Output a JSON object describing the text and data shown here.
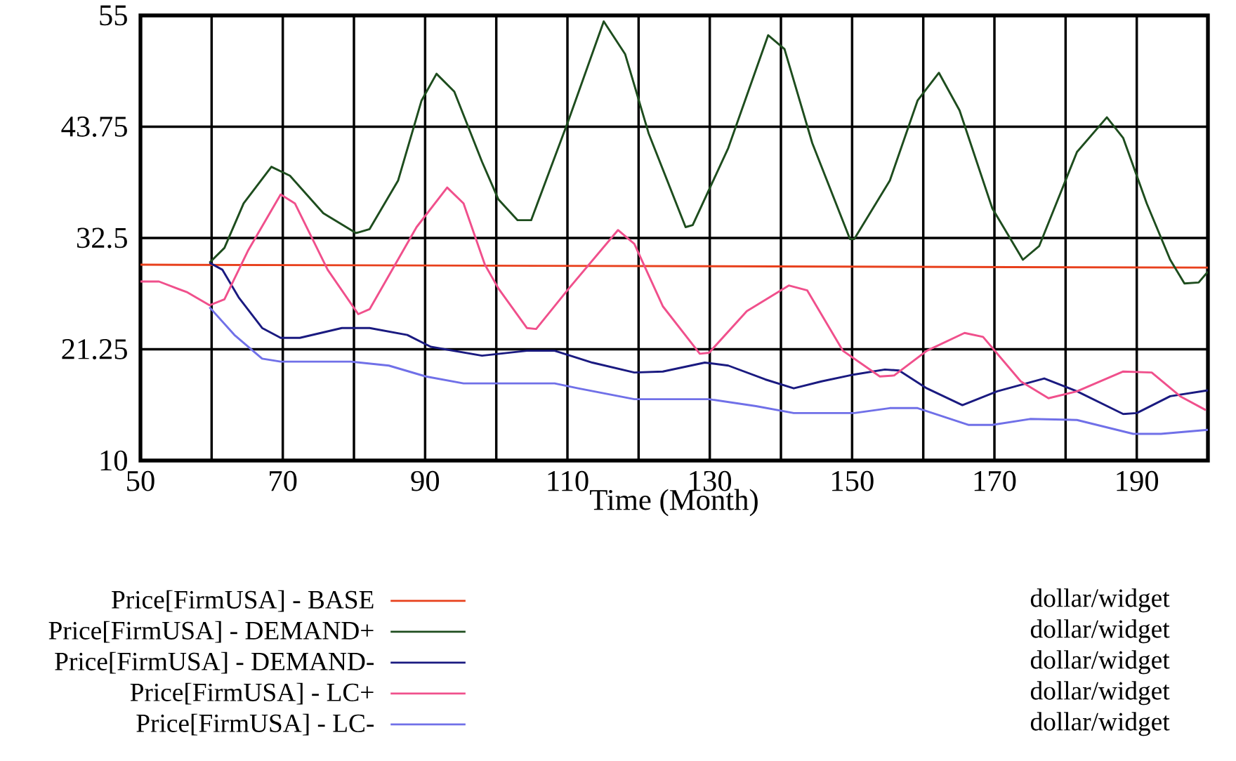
{
  "chart_data": {
    "type": "line",
    "xlabel": "Time (Month)",
    "xlim": [
      50,
      200
    ],
    "ylim": [
      10,
      55
    ],
    "xticks": [
      50,
      {
        "value": 60,
        "label": null
      },
      70,
      {
        "value": 80,
        "label": null
      },
      90,
      {
        "value": 100,
        "label": null
      },
      110,
      {
        "value": 120,
        "label": null
      },
      130,
      {
        "value": 140,
        "label": null
      },
      150,
      {
        "value": 160,
        "label": null
      },
      170,
      {
        "value": 180,
        "label": null
      },
      190
    ],
    "yticks": [
      10,
      21.25,
      32.5,
      43.75,
      55
    ],
    "grid": true,
    "legend": "bottom",
    "marker": "none",
    "line_style": "solid",
    "annotations": [
      "dollar/widget",
      "dollar/widget",
      "dollar/widget",
      "dollar/widget",
      "dollar/widget"
    ],
    "series": [
      {
        "name": "Price[FirmUSA] - BASE",
        "color": "#e8401c",
        "x": [
          50,
          200
        ],
        "values": [
          29.8,
          29.5
        ]
      },
      {
        "name": "Price[FirmUSA] - DEMAND+",
        "color": "#1e4d1e",
        "x": [
          59.7,
          61.8,
          64.5,
          68.4,
          71,
          75.7,
          80.3,
          82.2,
          86.2,
          89.5,
          91.6,
          94.1,
          98,
          100.3,
          103,
          104.9,
          110.2,
          115.1,
          118.1,
          121.4,
          126.6,
          127.6,
          132.6,
          138.2,
          140.5,
          144.4,
          149.7,
          150.3,
          155.3,
          159.2,
          162.2,
          165.1,
          169.7,
          174,
          176.3,
          181.6,
          185.8,
          188.1,
          191.4,
          194.7,
          196.7,
          198.7,
          200
        ],
        "values": [
          30.0,
          31.5,
          36.0,
          39.7,
          38.8,
          35.0,
          33.0,
          33.4,
          38.3,
          46.4,
          49.1,
          47.3,
          40.2,
          36.4,
          34.3,
          34.3,
          44.5,
          54.4,
          51.1,
          43.1,
          33.6,
          33.8,
          41.6,
          53.0,
          51.6,
          42.1,
          32.4,
          32.4,
          38.3,
          46.4,
          49.2,
          45.4,
          35.5,
          30.3,
          31.7,
          41.2,
          44.7,
          42.6,
          36.0,
          30.3,
          27.9,
          28.0,
          29.1
        ]
      },
      {
        "name": "Price[FirmUSA] - DEMAND-",
        "color": "#1a1a80",
        "x": [
          59.7,
          61.5,
          63.8,
          67.1,
          69.7,
          72.4,
          78.3,
          82.2,
          87.5,
          90.8,
          98,
          104.3,
          108.2,
          113.5,
          119.4,
          123.4,
          129.3,
          132.6,
          137.8,
          141.8,
          145.7,
          150.3,
          154.6,
          156.6,
          160.5,
          165.5,
          170.4,
          177,
          181.6,
          188.1,
          190,
          194.7,
          200
        ],
        "values": [
          30.0,
          29.3,
          26.5,
          23.4,
          22.4,
          22.4,
          23.4,
          23.4,
          22.7,
          21.5,
          20.6,
          21.1,
          21.1,
          19.9,
          18.9,
          19.0,
          19.9,
          19.6,
          18.2,
          17.3,
          18.0,
          18.7,
          19.2,
          19.1,
          17.3,
          15.6,
          17.0,
          18.3,
          17.0,
          14.7,
          14.8,
          16.5,
          17.1
        ]
      },
      {
        "name": "Price[FirmUSA] - LC+",
        "color": "#f0508c",
        "x": [
          50,
          52.6,
          56.6,
          59.7,
          61.8,
          65.1,
          69.7,
          71.7,
          76.3,
          80.6,
          82.2,
          88.8,
          93.1,
          95.4,
          98.4,
          100.3,
          104.3,
          105.6,
          110.2,
          117.1,
          119.4,
          123.4,
          128.6,
          129.9,
          135.2,
          141.1,
          143.7,
          148.7,
          153.9,
          155.9,
          160.5,
          165.8,
          168.4,
          173.7,
          177.6,
          181.6,
          188.1,
          192.1,
          196.1,
          199.7
        ],
        "values": [
          28.1,
          28.1,
          27.0,
          25.7,
          26.3,
          31.2,
          36.9,
          36.0,
          29.3,
          24.8,
          25.3,
          33.6,
          37.6,
          36.0,
          29.8,
          27.4,
          23.4,
          23.3,
          27.4,
          33.3,
          31.9,
          25.6,
          20.8,
          20.9,
          25.1,
          27.7,
          27.2,
          21.1,
          18.5,
          18.6,
          21.1,
          22.9,
          22.5,
          18.0,
          16.3,
          17.0,
          19.0,
          18.9,
          16.5,
          15.1
        ]
      },
      {
        "name": "Price[FirmUSA] - LC-",
        "color": "#7070e8",
        "x": [
          59.7,
          63.2,
          67.1,
          69.7,
          79.6,
          84.9,
          90.1,
          95.4,
          100.3,
          108.2,
          111.5,
          119.4,
          129.9,
          136.5,
          141.8,
          150.3,
          155.3,
          159.2,
          166.4,
          169.7,
          175,
          181.6,
          189.5,
          193.4,
          200
        ],
        "values": [
          25.5,
          22.7,
          20.3,
          20.0,
          20.0,
          19.6,
          18.5,
          17.8,
          17.8,
          17.8,
          17.3,
          16.2,
          16.2,
          15.5,
          14.8,
          14.8,
          15.3,
          15.3,
          13.6,
          13.6,
          14.2,
          14.1,
          12.7,
          12.7,
          13.1
        ]
      }
    ]
  }
}
